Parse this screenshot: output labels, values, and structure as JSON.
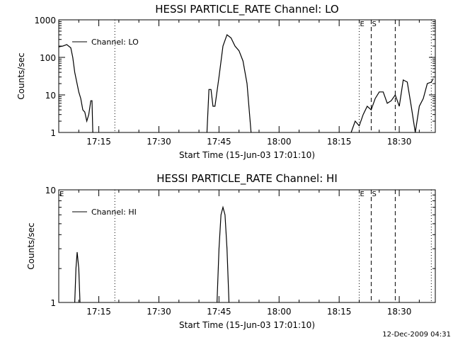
{
  "footer_stamp": "12-Dec-2009 04:31",
  "chart_data": [
    {
      "type": "line",
      "title": "HESSI PARTICLE_RATE Channel: LO",
      "xlabel": "Start Time (15-Jun-03 17:01:10)",
      "ylabel": "Counts/sec",
      "yscale": "log",
      "xlim": [
        "17:05",
        "18:39"
      ],
      "ylim": [
        1,
        1000
      ],
      "xticks": [
        "17:15",
        "17:30",
        "17:45",
        "18:00",
        "18:15",
        "18:30"
      ],
      "yticks": [
        "1",
        "10",
        "100",
        "1000"
      ],
      "legend": {
        "label": "Channel: LO",
        "placement": "top-left"
      },
      "markers": [
        {
          "label": "",
          "time": "17:19",
          "style": "dotted"
        },
        {
          "label": "E",
          "time": "18:20",
          "style": "dotted"
        },
        {
          "label": "S",
          "time": "18:23",
          "style": "dashed"
        },
        {
          "label": "",
          "time": "18:29",
          "style": "dashed"
        },
        {
          "label": "",
          "time": "18:38",
          "style": "dotted"
        }
      ],
      "series": [
        {
          "segments": [
            [
              [
                "17:05",
                190
              ],
              [
                "17:06",
                200
              ],
              [
                "17:07",
                220
              ],
              [
                "17:08",
                180
              ],
              [
                "17:08.5",
                100
              ],
              [
                "17:09",
                40
              ],
              [
                "17:10",
                12
              ],
              [
                "17:10.5",
                8
              ],
              [
                "17:11",
                4
              ],
              [
                "17:11.5",
                3.5
              ],
              [
                "17:12",
                2
              ],
              [
                "17:12.5",
                3
              ],
              [
                "17:13",
                7
              ],
              [
                "17:13.3",
                7
              ],
              [
                "17:13.5",
                1
              ]
            ],
            [
              [
                "17:42",
                1
              ],
              [
                "17:42.5",
                14
              ],
              [
                "17:43",
                14
              ],
              [
                "17:43.5",
                5
              ],
              [
                "17:44",
                5
              ],
              [
                "17:45",
                30
              ],
              [
                "17:46",
                200
              ],
              [
                "17:47",
                400
              ],
              [
                "17:48",
                330
              ],
              [
                "17:49",
                200
              ],
              [
                "17:50",
                150
              ],
              [
                "17:51",
                80
              ],
              [
                "17:52",
                20
              ],
              [
                "17:53",
                1
              ]
            ],
            [
              [
                "18:18",
                1
              ],
              [
                "18:19",
                2
              ],
              [
                "18:20",
                1.5
              ],
              [
                "18:21",
                3
              ],
              [
                "18:22",
                5
              ],
              [
                "18:23",
                4
              ],
              [
                "18:24",
                8
              ],
              [
                "18:25",
                12
              ],
              [
                "18:26",
                12
              ],
              [
                "18:27",
                6
              ],
              [
                "18:28",
                7
              ],
              [
                "18:29",
                10
              ],
              [
                "18:30",
                5
              ],
              [
                "18:31",
                25
              ],
              [
                "18:32",
                22
              ],
              [
                "18:33",
                5
              ],
              [
                "18:34",
                1
              ],
              [
                "18:35",
                5
              ],
              [
                "18:36",
                8
              ],
              [
                "18:37",
                20
              ],
              [
                "18:38",
                22
              ],
              [
                "18:38.5",
                27
              ]
            ]
          ]
        }
      ]
    },
    {
      "type": "line",
      "title": "HESSI PARTICLE_RATE Channel: HI",
      "xlabel": "Start Time (15-Jun-03 17:01:10)",
      "ylabel": "Counts/sec",
      "yscale": "log",
      "xlim": [
        "17:05",
        "18:39"
      ],
      "ylim": [
        1,
        10
      ],
      "xticks": [
        "17:15",
        "17:30",
        "17:45",
        "18:00",
        "18:15",
        "18:30"
      ],
      "yticks": [
        "1",
        "10"
      ],
      "legend": {
        "label": "Channel: HI",
        "placement": "top-left"
      },
      "markers": [
        {
          "label": "E",
          "time": "17:05",
          "style": "none"
        },
        {
          "label": "",
          "time": "17:19",
          "style": "dotted"
        },
        {
          "label": "E",
          "time": "18:20",
          "style": "dotted"
        },
        {
          "label": "S",
          "time": "18:23",
          "style": "dashed"
        },
        {
          "label": "",
          "time": "18:29",
          "style": "dashed"
        },
        {
          "label": "",
          "time": "18:38",
          "style": "dotted"
        }
      ],
      "series": [
        {
          "segments": [
            [
              [
                "17:09",
                1
              ],
              [
                "17:09.3",
                2
              ],
              [
                "17:09.6",
                2.8
              ],
              [
                "17:10",
                2
              ],
              [
                "17:10.3",
                1
              ]
            ],
            [
              [
                "17:44.5",
                1
              ],
              [
                "17:45",
                3
              ],
              [
                "17:45.5",
                6
              ],
              [
                "17:46",
                7
              ],
              [
                "17:46.5",
                6
              ],
              [
                "17:47",
                3
              ],
              [
                "17:47.5",
                1
              ]
            ]
          ]
        }
      ]
    }
  ]
}
